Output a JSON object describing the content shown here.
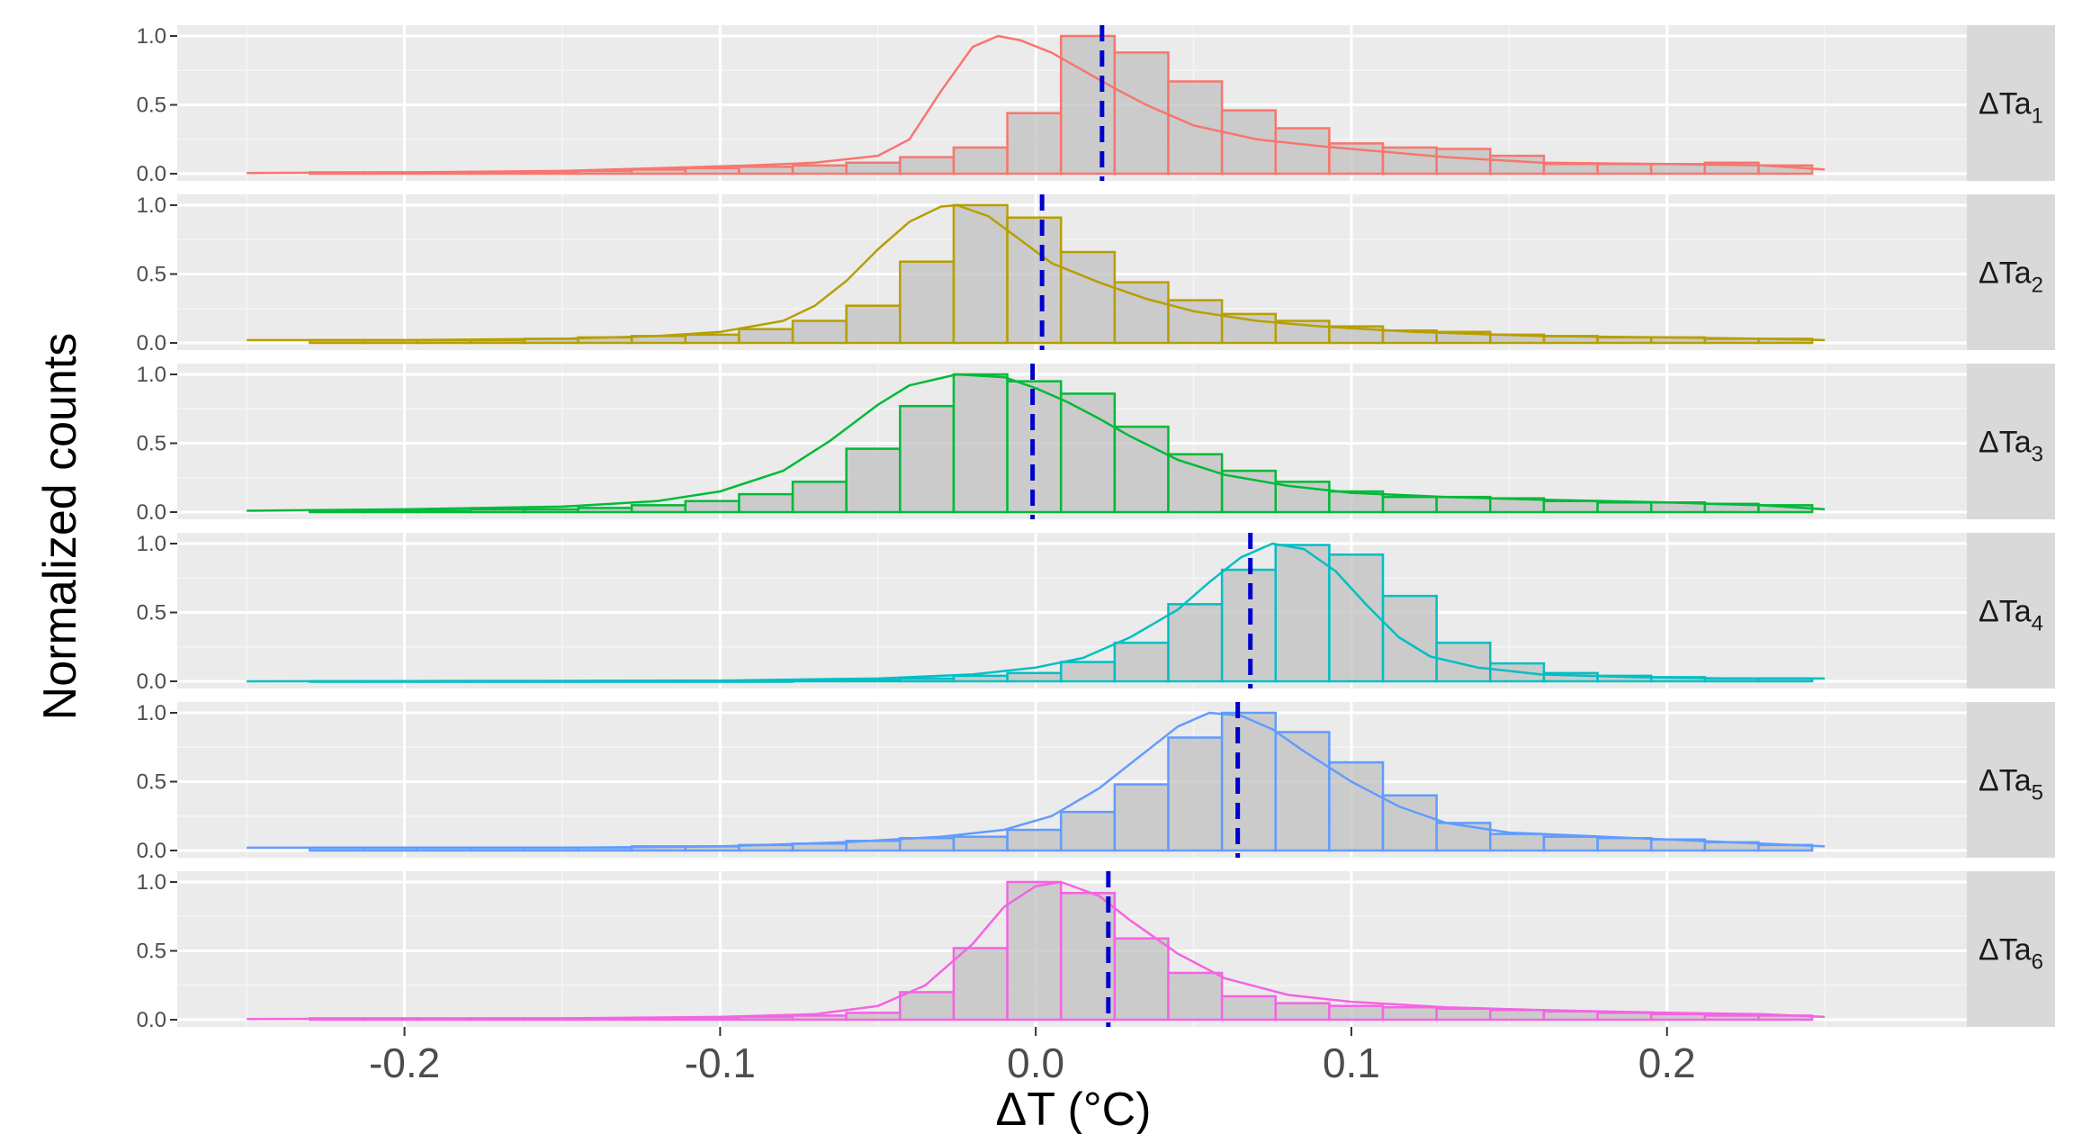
{
  "chart_data": {
    "type": "histogram",
    "xlabel": "ΔT (°C)",
    "ylabel": "Normalized counts",
    "xlim": [
      -0.25,
      0.25
    ],
    "ylim": [
      0,
      1.0
    ],
    "x_ticks": [
      -0.2,
      -0.1,
      0.0,
      0.1,
      0.2
    ],
    "x_tick_labels": [
      "-0.2",
      "-0.1",
      "0.0",
      "0.1",
      "0.2"
    ],
    "y_ticks": [
      0.0,
      0.5,
      1.0
    ],
    "y_tick_labels": [
      "0.0",
      "0.5",
      "1.0"
    ],
    "grid": true,
    "bins": [
      -0.23,
      -0.213,
      -0.196,
      -0.179,
      -0.162,
      -0.145,
      -0.128,
      -0.111,
      -0.094,
      -0.077,
      -0.06,
      -0.043,
      -0.026,
      -0.009,
      0.008,
      0.025,
      0.042,
      0.059,
      0.076,
      0.093,
      0.11,
      0.127,
      0.144,
      0.161,
      0.178,
      0.195,
      0.212,
      0.229
    ],
    "panels": [
      {
        "label": "ΔTa",
        "subscript": "1",
        "color": "#F8766D",
        "mean": 0.021,
        "counts": [
          0.01,
          0.01,
          0.01,
          0.01,
          0.01,
          0.02,
          0.03,
          0.04,
          0.05,
          0.06,
          0.08,
          0.12,
          0.19,
          0.44,
          1.0,
          0.88,
          0.67,
          0.46,
          0.33,
          0.22,
          0.19,
          0.18,
          0.13,
          0.07,
          0.07,
          0.07,
          0.08,
          0.06
        ],
        "density": [
          [
            -0.25,
            0.005
          ],
          [
            -0.2,
            0.01
          ],
          [
            -0.15,
            0.02
          ],
          [
            -0.12,
            0.04
          ],
          [
            -0.09,
            0.06
          ],
          [
            -0.07,
            0.08
          ],
          [
            -0.05,
            0.13
          ],
          [
            -0.04,
            0.25
          ],
          [
            -0.03,
            0.6
          ],
          [
            -0.02,
            0.92
          ],
          [
            -0.012,
            1.0
          ],
          [
            -0.005,
            0.97
          ],
          [
            0.005,
            0.88
          ],
          [
            0.015,
            0.75
          ],
          [
            0.025,
            0.62
          ],
          [
            0.035,
            0.5
          ],
          [
            0.05,
            0.35
          ],
          [
            0.07,
            0.25
          ],
          [
            0.09,
            0.2
          ],
          [
            0.11,
            0.16
          ],
          [
            0.13,
            0.12
          ],
          [
            0.16,
            0.08
          ],
          [
            0.2,
            0.07
          ],
          [
            0.23,
            0.06
          ],
          [
            0.25,
            0.03
          ]
        ]
      },
      {
        "label": "ΔTa",
        "subscript": "2",
        "color": "#B79F00",
        "mean": 0.002,
        "counts": [
          0.02,
          0.02,
          0.02,
          0.02,
          0.03,
          0.04,
          0.05,
          0.06,
          0.1,
          0.16,
          0.27,
          0.59,
          1.0,
          0.91,
          0.66,
          0.44,
          0.31,
          0.21,
          0.16,
          0.12,
          0.09,
          0.08,
          0.06,
          0.05,
          0.04,
          0.04,
          0.03,
          0.03
        ],
        "density": [
          [
            -0.25,
            0.02
          ],
          [
            -0.2,
            0.02
          ],
          [
            -0.15,
            0.03
          ],
          [
            -0.12,
            0.05
          ],
          [
            -0.1,
            0.08
          ],
          [
            -0.08,
            0.16
          ],
          [
            -0.07,
            0.27
          ],
          [
            -0.06,
            0.45
          ],
          [
            -0.05,
            0.68
          ],
          [
            -0.04,
            0.88
          ],
          [
            -0.03,
            0.99
          ],
          [
            -0.025,
            1.0
          ],
          [
            -0.015,
            0.92
          ],
          [
            -0.005,
            0.75
          ],
          [
            0.005,
            0.58
          ],
          [
            0.02,
            0.44
          ],
          [
            0.035,
            0.32
          ],
          [
            0.05,
            0.23
          ],
          [
            0.07,
            0.16
          ],
          [
            0.09,
            0.12
          ],
          [
            0.12,
            0.08
          ],
          [
            0.16,
            0.05
          ],
          [
            0.2,
            0.04
          ],
          [
            0.23,
            0.03
          ],
          [
            0.25,
            0.02
          ]
        ]
      },
      {
        "label": "ΔTa",
        "subscript": "3",
        "color": "#00BA38",
        "mean": -0.001,
        "counts": [
          0.01,
          0.01,
          0.01,
          0.02,
          0.02,
          0.03,
          0.05,
          0.08,
          0.13,
          0.22,
          0.46,
          0.77,
          1.0,
          0.95,
          0.86,
          0.62,
          0.42,
          0.3,
          0.22,
          0.15,
          0.11,
          0.11,
          0.1,
          0.08,
          0.07,
          0.07,
          0.06,
          0.05
        ],
        "density": [
          [
            -0.25,
            0.01
          ],
          [
            -0.2,
            0.02
          ],
          [
            -0.15,
            0.04
          ],
          [
            -0.12,
            0.08
          ],
          [
            -0.1,
            0.15
          ],
          [
            -0.08,
            0.3
          ],
          [
            -0.065,
            0.52
          ],
          [
            -0.05,
            0.78
          ],
          [
            -0.04,
            0.92
          ],
          [
            -0.025,
            1.0
          ],
          [
            -0.01,
            0.98
          ],
          [
            0.0,
            0.9
          ],
          [
            0.01,
            0.8
          ],
          [
            0.02,
            0.68
          ],
          [
            0.03,
            0.55
          ],
          [
            0.045,
            0.38
          ],
          [
            0.06,
            0.27
          ],
          [
            0.08,
            0.19
          ],
          [
            0.1,
            0.14
          ],
          [
            0.13,
            0.11
          ],
          [
            0.16,
            0.09
          ],
          [
            0.2,
            0.07
          ],
          [
            0.23,
            0.05
          ],
          [
            0.25,
            0.02
          ]
        ]
      },
      {
        "label": "ΔTa",
        "subscript": "4",
        "color": "#00BFC4",
        "mean": 0.068,
        "counts": [
          0.0,
          0.0,
          0.0,
          0.0,
          0.0,
          0.0,
          0.0,
          0.0,
          0.0,
          0.01,
          0.01,
          0.02,
          0.04,
          0.06,
          0.14,
          0.28,
          0.56,
          0.81,
          0.99,
          0.92,
          0.62,
          0.28,
          0.13,
          0.06,
          0.04,
          0.03,
          0.02,
          0.02
        ],
        "density": [
          [
            -0.25,
            0.0
          ],
          [
            -0.1,
            0.005
          ],
          [
            -0.05,
            0.02
          ],
          [
            -0.02,
            0.05
          ],
          [
            0.0,
            0.1
          ],
          [
            0.015,
            0.17
          ],
          [
            0.03,
            0.32
          ],
          [
            0.045,
            0.52
          ],
          [
            0.055,
            0.72
          ],
          [
            0.065,
            0.9
          ],
          [
            0.075,
            1.0
          ],
          [
            0.085,
            0.96
          ],
          [
            0.095,
            0.8
          ],
          [
            0.105,
            0.55
          ],
          [
            0.115,
            0.32
          ],
          [
            0.125,
            0.18
          ],
          [
            0.14,
            0.1
          ],
          [
            0.16,
            0.05
          ],
          [
            0.19,
            0.03
          ],
          [
            0.22,
            0.02
          ],
          [
            0.25,
            0.02
          ]
        ]
      },
      {
        "label": "ΔTa",
        "subscript": "5",
        "color": "#619CFF",
        "mean": 0.064,
        "counts": [
          0.02,
          0.02,
          0.02,
          0.02,
          0.02,
          0.02,
          0.03,
          0.03,
          0.04,
          0.05,
          0.07,
          0.09,
          0.1,
          0.15,
          0.28,
          0.48,
          0.82,
          1.0,
          0.86,
          0.64,
          0.4,
          0.2,
          0.12,
          0.1,
          0.09,
          0.08,
          0.06,
          0.04
        ],
        "density": [
          [
            -0.25,
            0.02
          ],
          [
            -0.15,
            0.02
          ],
          [
            -0.1,
            0.03
          ],
          [
            -0.06,
            0.06
          ],
          [
            -0.03,
            0.1
          ],
          [
            -0.01,
            0.15
          ],
          [
            0.005,
            0.25
          ],
          [
            0.02,
            0.45
          ],
          [
            0.035,
            0.72
          ],
          [
            0.045,
            0.9
          ],
          [
            0.055,
            1.0
          ],
          [
            0.065,
            0.98
          ],
          [
            0.075,
            0.88
          ],
          [
            0.085,
            0.72
          ],
          [
            0.1,
            0.5
          ],
          [
            0.115,
            0.32
          ],
          [
            0.13,
            0.2
          ],
          [
            0.15,
            0.13
          ],
          [
            0.18,
            0.1
          ],
          [
            0.21,
            0.07
          ],
          [
            0.25,
            0.03
          ]
        ]
      },
      {
        "label": "ΔTa",
        "subscript": "6",
        "color": "#F564E3",
        "mean": 0.023,
        "counts": [
          0.01,
          0.01,
          0.01,
          0.01,
          0.01,
          0.01,
          0.01,
          0.01,
          0.02,
          0.03,
          0.05,
          0.2,
          0.52,
          1.0,
          0.92,
          0.59,
          0.34,
          0.17,
          0.12,
          0.1,
          0.09,
          0.08,
          0.07,
          0.06,
          0.05,
          0.04,
          0.03,
          0.03
        ],
        "density": [
          [
            -0.25,
            0.005
          ],
          [
            -0.15,
            0.01
          ],
          [
            -0.1,
            0.02
          ],
          [
            -0.07,
            0.04
          ],
          [
            -0.05,
            0.1
          ],
          [
            -0.035,
            0.25
          ],
          [
            -0.02,
            0.55
          ],
          [
            -0.01,
            0.82
          ],
          [
            0.0,
            0.97
          ],
          [
            0.008,
            1.0
          ],
          [
            0.02,
            0.9
          ],
          [
            0.03,
            0.72
          ],
          [
            0.045,
            0.48
          ],
          [
            0.06,
            0.3
          ],
          [
            0.08,
            0.18
          ],
          [
            0.1,
            0.13
          ],
          [
            0.13,
            0.09
          ],
          [
            0.16,
            0.07
          ],
          [
            0.2,
            0.05
          ],
          [
            0.23,
            0.04
          ],
          [
            0.25,
            0.02
          ]
        ]
      }
    ]
  }
}
